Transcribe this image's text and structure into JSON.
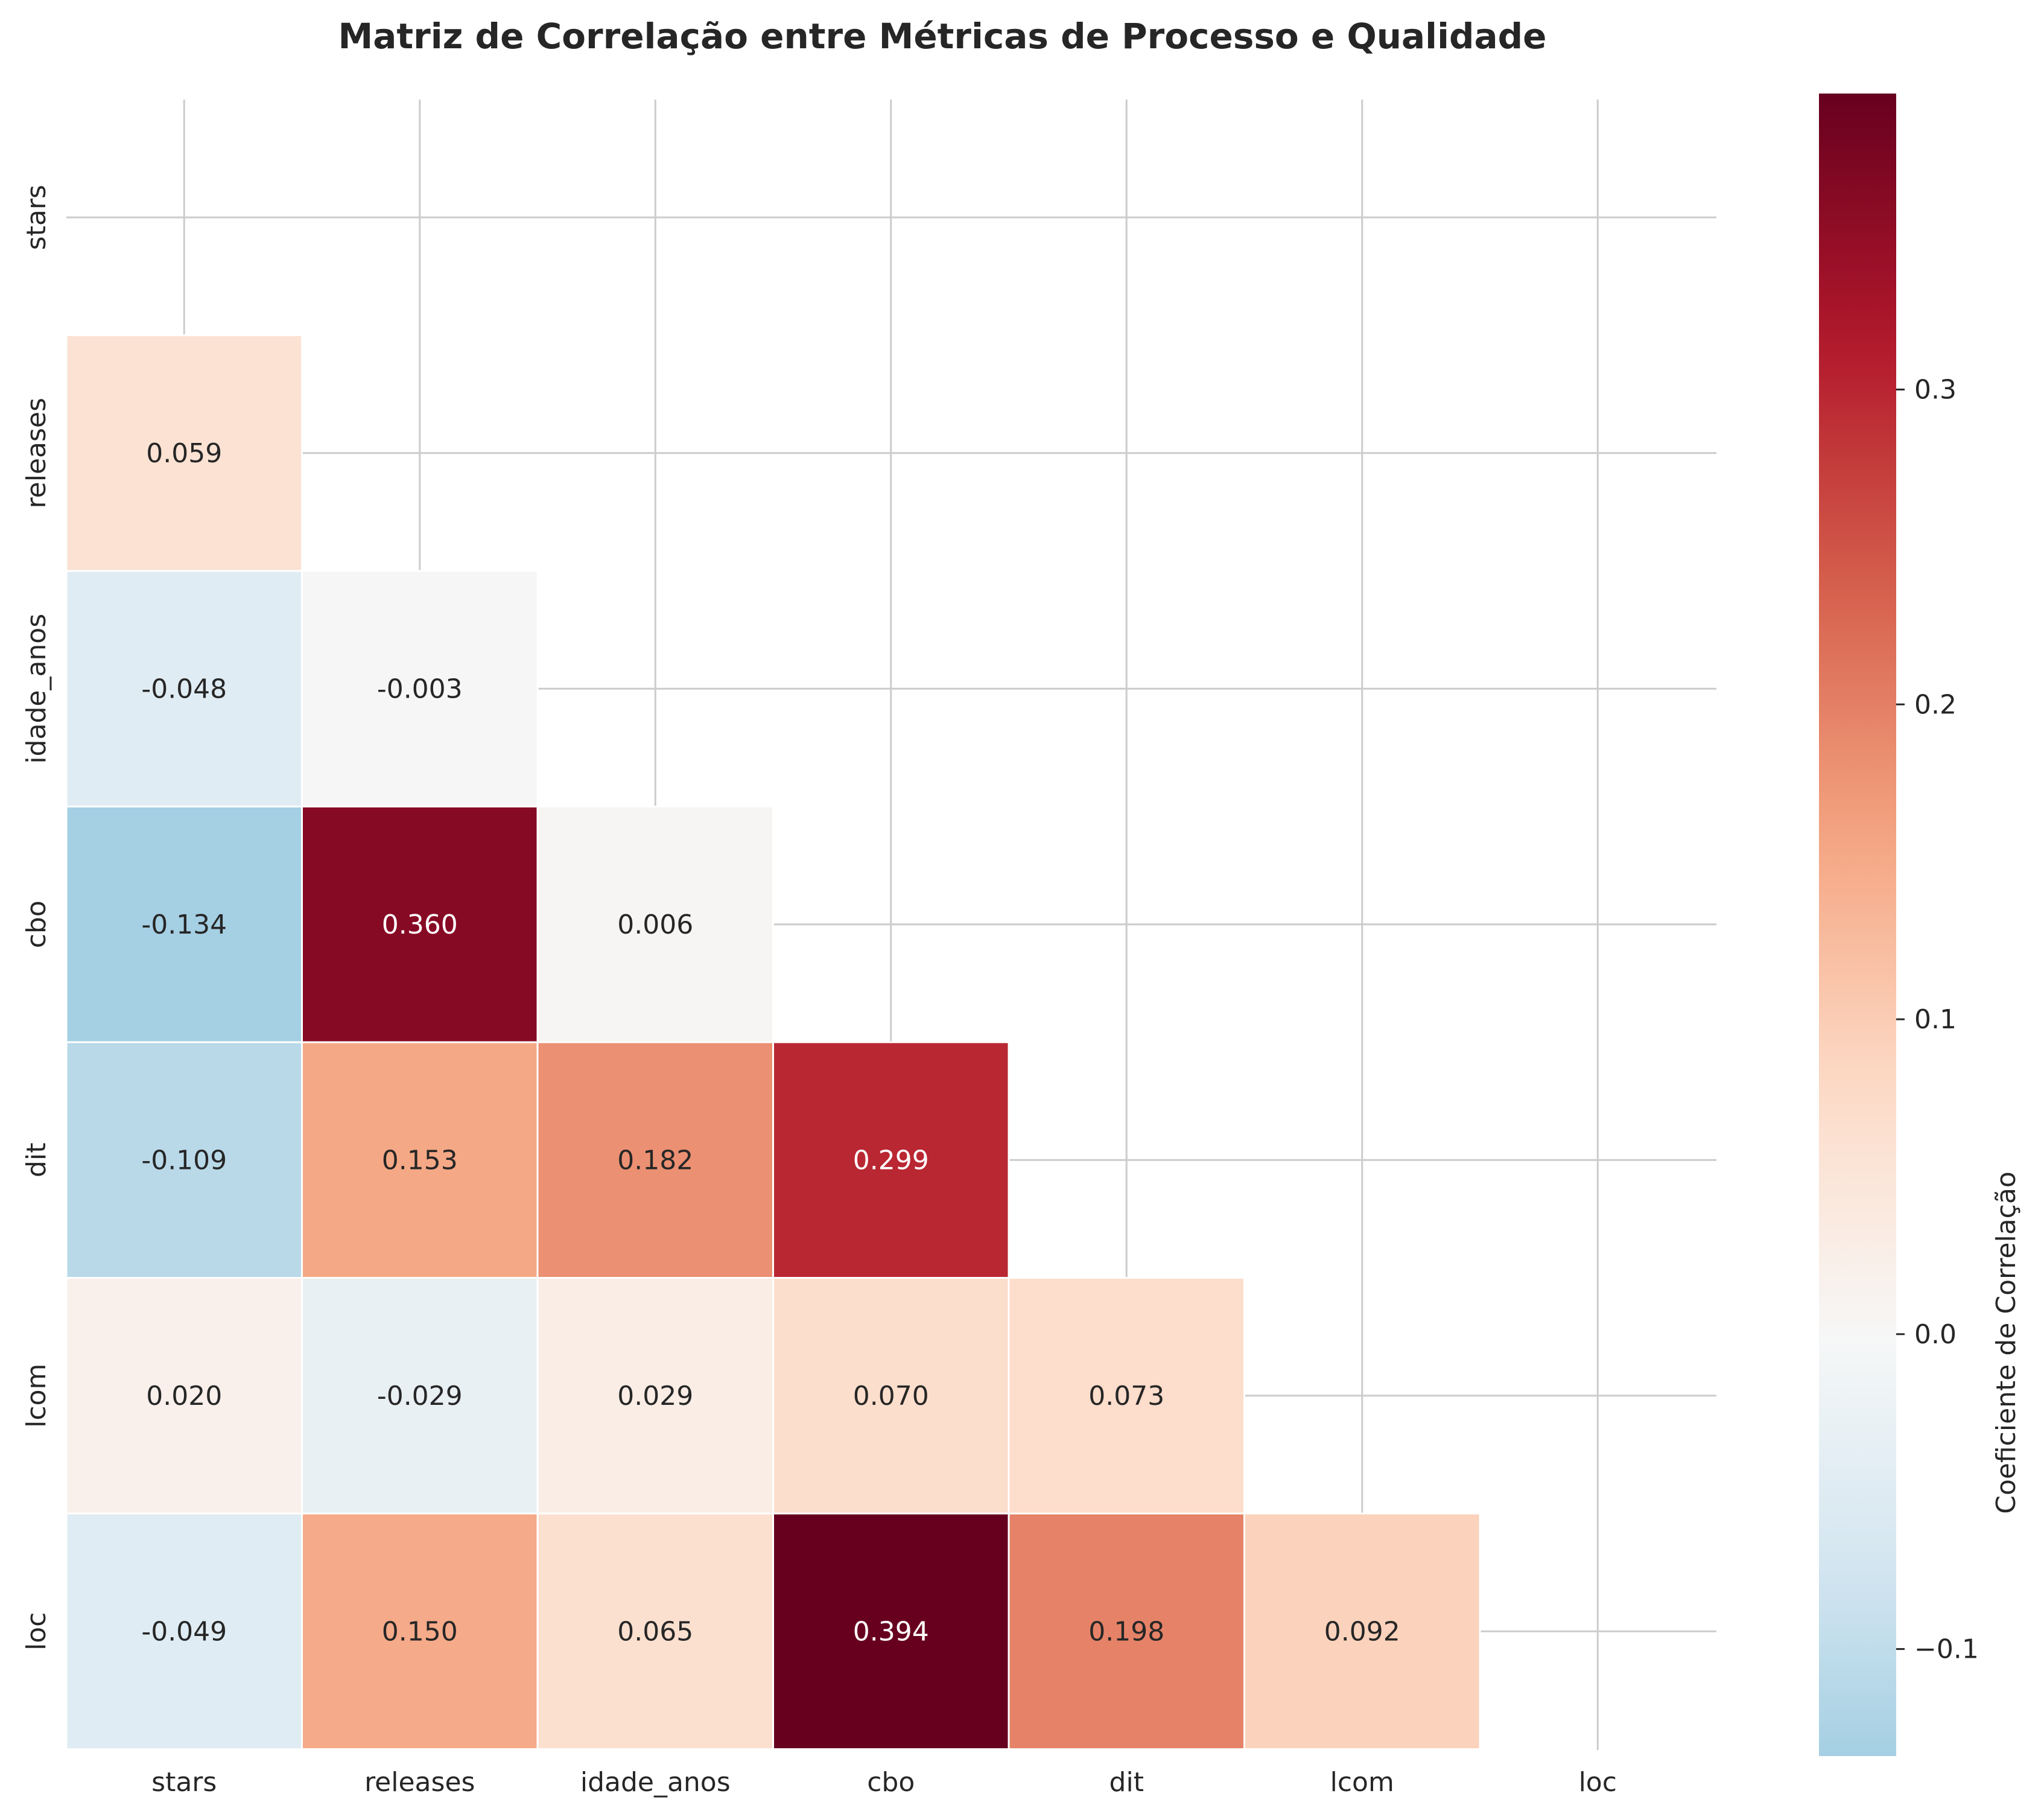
{
  "chart_data": {
    "type": "heatmap",
    "title": "Matriz de Correlação entre Métricas de Processo e Qualidade",
    "variables": [
      "stars",
      "releases",
      "idade_anos",
      "cbo",
      "dit",
      "lcom",
      "loc"
    ],
    "mask": "upper-triangle-including-diagonal",
    "values": [
      [
        null,
        null,
        null,
        null,
        null,
        null,
        null
      ],
      [
        0.059,
        null,
        null,
        null,
        null,
        null,
        null
      ],
      [
        -0.048,
        -0.003,
        null,
        null,
        null,
        null,
        null
      ],
      [
        -0.134,
        0.36,
        0.006,
        null,
        null,
        null,
        null
      ],
      [
        -0.109,
        0.153,
        0.182,
        0.299,
        null,
        null,
        null
      ],
      [
        0.02,
        -0.029,
        0.029,
        0.07,
        0.073,
        null,
        null
      ],
      [
        -0.049,
        0.15,
        0.065,
        0.394,
        0.198,
        0.092,
        null
      ]
    ],
    "cell_labels": [
      [
        null,
        null,
        null,
        null,
        null,
        null,
        null
      ],
      [
        "0.059",
        null,
        null,
        null,
        null,
        null,
        null
      ],
      [
        "-0.048",
        "-0.003",
        null,
        null,
        null,
        null,
        null
      ],
      [
        "-0.134",
        "0.360",
        "0.006",
        null,
        null,
        null,
        null
      ],
      [
        "-0.109",
        "0.153",
        "0.182",
        "0.299",
        null,
        null,
        null
      ],
      [
        "0.020",
        "-0.029",
        "0.029",
        "0.070",
        "0.073",
        null,
        null
      ],
      [
        "-0.049",
        "0.150",
        "0.065",
        "0.394",
        "0.198",
        "0.092",
        null
      ]
    ],
    "colormap": "RdBu_r",
    "center": 0.0,
    "vmin": -0.134,
    "vmax": 0.394,
    "colorbar": {
      "label": "Coeficiente de Correlação",
      "ticks": [
        -0.1,
        0.0,
        0.1,
        0.2,
        0.3
      ],
      "tick_labels": [
        "−0.1",
        "0.0",
        "0.1",
        "0.2",
        "0.3"
      ]
    },
    "grid": true
  }
}
